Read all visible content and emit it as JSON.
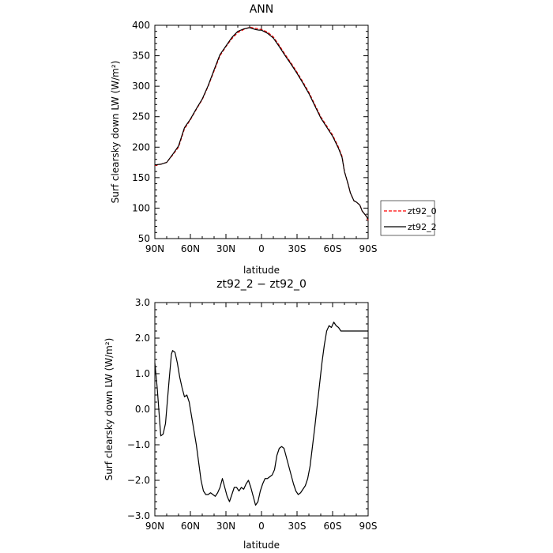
{
  "chart_data": [
    {
      "type": "line",
      "title": "ANN",
      "xlabel": "latitude",
      "ylabel": "Surf clearsky down LW (W/m²)",
      "xlim": [
        90,
        -90
      ],
      "ylim": [
        50,
        400
      ],
      "xticks": [
        90,
        60,
        30,
        0,
        -30,
        -60,
        -90
      ],
      "xtick_labels": [
        "90N",
        "60N",
        "30N",
        "0",
        "30S",
        "60S",
        "90S"
      ],
      "yticks": [
        50,
        100,
        150,
        200,
        250,
        300,
        350,
        400
      ],
      "ytick_labels": [
        "50",
        "100",
        "150",
        "200",
        "250",
        "300",
        "350",
        "400"
      ],
      "legend": {
        "placement": "right"
      },
      "grid": false,
      "series": [
        {
          "name": "zt92_0",
          "color": "#ff0000",
          "dash": "dashed",
          "x": [
            90,
            85,
            80,
            75,
            70,
            65,
            60,
            55,
            50,
            45,
            40,
            35,
            30,
            25,
            20,
            15,
            10,
            5,
            2,
            0,
            -5,
            -10,
            -15,
            -20,
            -25,
            -30,
            -35,
            -40,
            -45,
            -50,
            -55,
            -60,
            -65,
            -68,
            -70,
            -73,
            -75,
            -78,
            -80,
            -83,
            -85,
            -88,
            -90
          ],
          "y": [
            170,
            172,
            175,
            187,
            200,
            230,
            245,
            262,
            278,
            300,
            325,
            350,
            365,
            378,
            388,
            393,
            397,
            395,
            394,
            393,
            389,
            381,
            367,
            352,
            338,
            323,
            307,
            290,
            270,
            250,
            235,
            220,
            200,
            185,
            160,
            140,
            125,
            112,
            110,
            105,
            95,
            88,
            80
          ]
        },
        {
          "name": "zt92_2",
          "color": "#000000",
          "dash": "solid",
          "x": [
            90,
            85,
            80,
            75,
            70,
            65,
            60,
            55,
            50,
            45,
            40,
            35,
            30,
            25,
            20,
            15,
            10,
            5,
            2,
            0,
            -5,
            -10,
            -15,
            -20,
            -25,
            -30,
            -35,
            -40,
            -45,
            -50,
            -55,
            -60,
            -65,
            -68,
            -70,
            -73,
            -75,
            -78,
            -80,
            -83,
            -85,
            -88,
            -90
          ],
          "y": [
            171,
            172,
            175,
            188,
            202,
            232,
            246,
            263,
            279,
            301,
            327,
            352,
            366,
            380,
            390,
            394,
            396,
            393,
            392,
            392,
            387,
            379,
            365,
            350,
            336,
            321,
            305,
            288,
            268,
            248,
            233,
            218,
            198,
            183,
            160,
            140,
            125,
            112,
            110,
            105,
            95,
            88,
            82
          ]
        }
      ]
    },
    {
      "type": "line",
      "title": "zt92_2 − zt92_0",
      "xlabel": "latitude",
      "ylabel": "Surf clearsky down LW (W/m²)",
      "xlim": [
        90,
        -90
      ],
      "ylim": [
        -3.0,
        3.0
      ],
      "xticks": [
        90,
        60,
        30,
        0,
        -30,
        -60,
        -90
      ],
      "xtick_labels": [
        "90N",
        "60N",
        "30N",
        "0",
        "30S",
        "60S",
        "90S"
      ],
      "yticks": [
        -3.0,
        -2.0,
        -1.0,
        0.0,
        1.0,
        2.0,
        3.0
      ],
      "ytick_labels": [
        "−3.0",
        "−2.0",
        "−1.0",
        "0.0",
        "1.0",
        "2.0",
        "3.0"
      ],
      "grid": false,
      "series": [
        {
          "color": "#000000",
          "dash": "solid",
          "x": [
            90,
            88,
            86,
            85,
            83,
            81,
            80,
            78,
            76,
            75,
            73,
            71,
            69,
            67,
            65,
            63,
            61,
            59,
            57,
            55,
            53,
            51,
            49,
            47,
            45,
            43,
            41,
            39,
            37,
            35,
            33,
            31,
            29,
            27,
            25,
            23,
            21,
            19,
            17,
            15,
            13,
            11,
            9,
            7,
            5,
            3,
            1,
            -1,
            -3,
            -5,
            -7,
            -9,
            -11,
            -13,
            -15,
            -17,
            -19,
            -21,
            -23,
            -25,
            -27,
            -29,
            -31,
            -33,
            -35,
            -37,
            -39,
            -41,
            -43,
            -45,
            -47,
            -49,
            -51,
            -53,
            -55,
            -57,
            -59,
            -61,
            -63,
            -65,
            -67,
            -69,
            -71,
            -73,
            -75,
            -77,
            -79,
            -81,
            -83,
            -85,
            -87,
            -89,
            -90
          ],
          "y": [
            1.3,
            0.6,
            -0.3,
            -0.75,
            -0.7,
            -0.4,
            0.0,
            0.8,
            1.55,
            1.65,
            1.6,
            1.3,
            0.9,
            0.6,
            0.35,
            0.4,
            0.2,
            -0.2,
            -0.6,
            -1.0,
            -1.5,
            -2.0,
            -2.3,
            -2.4,
            -2.4,
            -2.35,
            -2.4,
            -2.45,
            -2.35,
            -2.2,
            -1.95,
            -2.2,
            -2.45,
            -2.6,
            -2.4,
            -2.2,
            -2.2,
            -2.3,
            -2.2,
            -2.25,
            -2.1,
            -2.0,
            -2.2,
            -2.45,
            -2.7,
            -2.6,
            -2.3,
            -2.1,
            -1.95,
            -1.95,
            -1.9,
            -1.85,
            -1.7,
            -1.3,
            -1.1,
            -1.05,
            -1.1,
            -1.35,
            -1.6,
            -1.85,
            -2.1,
            -2.3,
            -2.4,
            -2.35,
            -2.25,
            -2.15,
            -1.95,
            -1.6,
            -1.05,
            -0.5,
            0.1,
            0.7,
            1.3,
            1.8,
            2.2,
            2.35,
            2.3,
            2.45,
            2.35,
            2.3,
            2.2,
            2.2,
            2.2,
            2.2,
            2.2,
            2.2,
            2.2,
            2.2,
            2.2,
            2.2,
            2.2,
            2.2,
            2.2
          ]
        }
      ]
    }
  ]
}
